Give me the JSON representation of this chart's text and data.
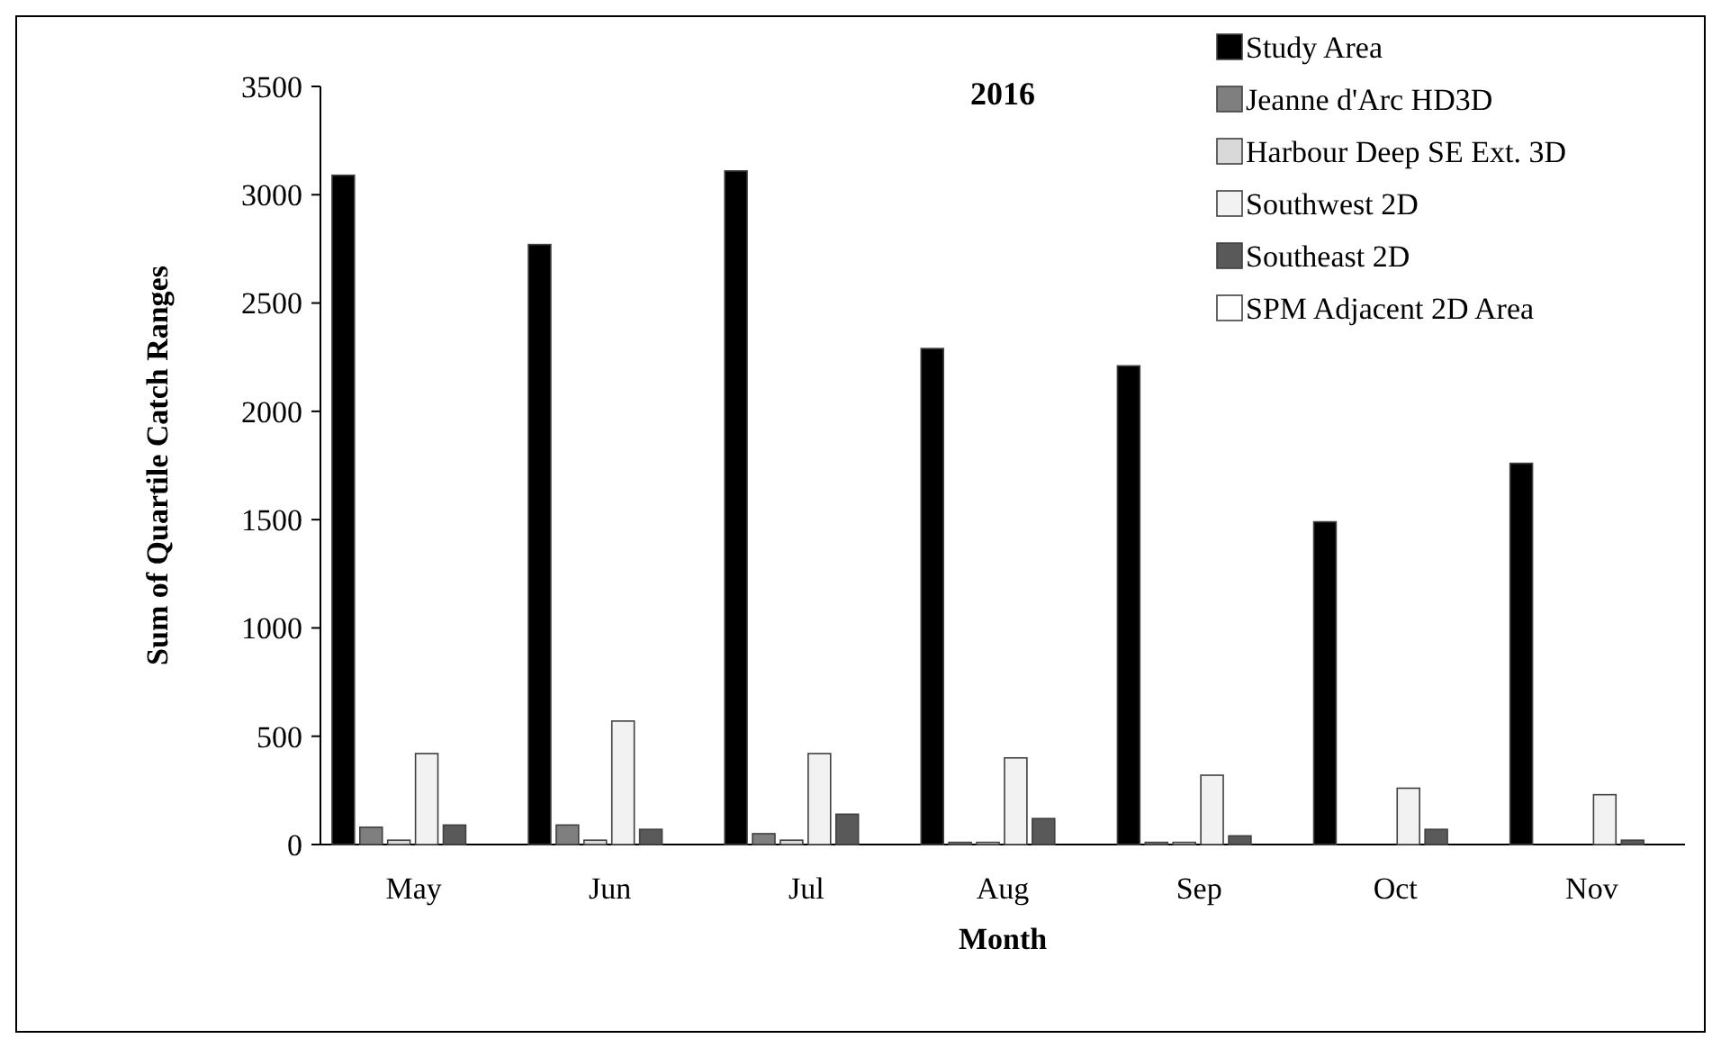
{
  "chart_data": {
    "type": "bar",
    "title": "2016",
    "xlabel": "Month",
    "ylabel": "Sum of Quartile Catch Ranges",
    "categories": [
      "May",
      "Jun",
      "Jul",
      "Aug",
      "Sep",
      "Oct",
      "Nov"
    ],
    "series": [
      {
        "name": "Study Area",
        "color": "#000000",
        "values": [
          3090,
          2770,
          3110,
          2290,
          2210,
          1490,
          1760
        ]
      },
      {
        "name": "Jeanne d'Arc HD3D",
        "color": "#7f7f7f",
        "values": [
          80,
          90,
          50,
          10,
          10,
          0,
          0
        ]
      },
      {
        "name": "Harbour Deep SE Ext. 3D",
        "color": "#d9d9d9",
        "values": [
          20,
          20,
          20,
          10,
          10,
          0,
          0
        ]
      },
      {
        "name": "Southwest 2D",
        "color": "#f2f2f2",
        "values": [
          420,
          570,
          420,
          400,
          320,
          260,
          230
        ]
      },
      {
        "name": "Southeast 2D",
        "color": "#595959",
        "values": [
          90,
          70,
          140,
          120,
          40,
          70,
          20
        ]
      },
      {
        "name": "SPM Adjacent 2D Area",
        "color": "#ffffff",
        "values": [
          0,
          0,
          0,
          0,
          0,
          0,
          0
        ]
      }
    ],
    "ylim": [
      0,
      3500
    ],
    "yticks": [
      0,
      500,
      1000,
      1500,
      2000,
      2500,
      3000,
      3500
    ],
    "grid": false,
    "legend": "top right"
  }
}
